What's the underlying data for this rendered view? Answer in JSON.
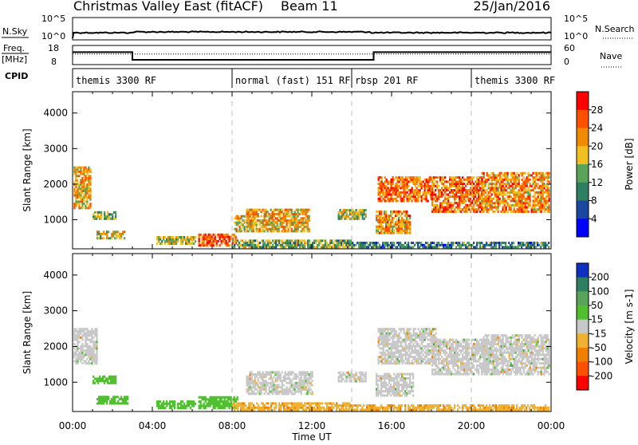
{
  "header": {
    "title": "Christmas Valley East (fitACF)",
    "beam": "Beam 11",
    "date": "25/Jan/2016"
  },
  "summary": {
    "nsky_label": "N.Sky",
    "nsearch_label": "N.Search",
    "nsky_ticks": [
      "10^5",
      "10^0"
    ],
    "nsearch_ticks": [
      "10^5",
      "10^0"
    ],
    "freq_label_1": "Freq.",
    "freq_label_2": "[MHz]",
    "freq_ticks": [
      "18",
      "8"
    ],
    "nave_label": "Nave",
    "nave_ticks": [
      "60",
      "0"
    ],
    "cpid_label": "CPID",
    "freq_steps": [
      {
        "t_start": 0,
        "t_end": 3.0,
        "freq": 14.5
      },
      {
        "t_start": 3.0,
        "t_end": 15.1,
        "freq": 10.5
      },
      {
        "t_start": 15.1,
        "t_end": 24,
        "freq": 14.5
      }
    ],
    "nave_level": 33,
    "cpid_segments": [
      {
        "t_start": 0,
        "t_end": 8.0,
        "label": "themis 3300 RF"
      },
      {
        "t_start": 8.0,
        "t_end": 14.0,
        "label": "normal (fast) 151 RF"
      },
      {
        "t_start": 14.0,
        "t_end": 20.0,
        "label": "rbsp 201 RF"
      },
      {
        "t_start": 20.0,
        "t_end": 24,
        "label": "themis 3300 RF"
      }
    ]
  },
  "chart_data": [
    {
      "type": "heatmap",
      "name": "power",
      "xlabel": "Time UT",
      "ylabel": "Slant Range [km]",
      "xlim": [
        0,
        24
      ],
      "ylim": [
        180,
        4600
      ],
      "yticks": [
        "1000",
        "2000",
        "3000",
        "4000"
      ],
      "colorbar": {
        "label": "Power [dB]",
        "ticks": [
          "4",
          "8",
          "12",
          "16",
          "20",
          "24",
          "28"
        ],
        "range": [
          0,
          32
        ],
        "colors": [
          "#0000ff",
          "#1a48a0",
          "#2e7f62",
          "#5aa35a",
          "#f0c020",
          "#f08a00",
          "#ff5000",
          "#ff0000"
        ]
      },
      "regions": [
        {
          "t": [
            0.05,
            0.9
          ],
          "r": [
            1300,
            2500
          ],
          "v": 20
        },
        {
          "t": [
            1.0,
            2.2
          ],
          "r": [
            1000,
            1200
          ],
          "v": 14
        },
        {
          "t": [
            1.2,
            2.6
          ],
          "r": [
            450,
            650
          ],
          "v": 18
        },
        {
          "t": [
            4.2,
            6.2
          ],
          "r": [
            300,
            500
          ],
          "v": 17
        },
        {
          "t": [
            6.3,
            8.2
          ],
          "r": [
            250,
            600
          ],
          "v": 26
        },
        {
          "t": [
            8.1,
            8.6
          ],
          "r": [
            650,
            1100
          ],
          "v": 18
        },
        {
          "t": [
            8.7,
            11.9
          ],
          "r": [
            650,
            1300
          ],
          "v": 20
        },
        {
          "t": [
            8.0,
            14.0
          ],
          "r": [
            200,
            400
          ],
          "v": 14
        },
        {
          "t": [
            13.3,
            14.7
          ],
          "r": [
            1000,
            1300
          ],
          "v": 16
        },
        {
          "t": [
            15.2,
            16.9
          ],
          "r": [
            600,
            1250
          ],
          "v": 22
        },
        {
          "t": [
            15.3,
            18.0
          ],
          "r": [
            1500,
            2200
          ],
          "v": 24
        },
        {
          "t": [
            18.0,
            20.5
          ],
          "r": [
            1200,
            2200
          ],
          "v": 24
        },
        {
          "t": [
            20.5,
            23.9
          ],
          "r": [
            1200,
            2300
          ],
          "v": 22
        },
        {
          "t": [
            14.0,
            23.9
          ],
          "r": [
            200,
            350
          ],
          "v": 10
        }
      ]
    },
    {
      "type": "heatmap",
      "name": "velocity",
      "xlabel": "Time UT",
      "ylabel": "Slant Range [km]",
      "xlim": [
        0,
        24
      ],
      "ylim": [
        180,
        4600
      ],
      "yticks": [
        "1000",
        "2000",
        "3000",
        "4000"
      ],
      "xticks": [
        "00:00",
        "04:00",
        "08:00",
        "12:00",
        "16:00",
        "20:00",
        "00:00"
      ],
      "colorbar": {
        "label": "Velocity [m s-1]",
        "ticks": [
          "200",
          "100",
          "50",
          "15",
          "-15",
          "-50",
          "-100",
          "-200"
        ],
        "colors": [
          "#1030c0",
          "#2e7f62",
          "#5aa35a",
          "#50c030",
          "#c8c8c8",
          "#f0b030",
          "#f08000",
          "#ff5000",
          "#ff0000"
        ]
      },
      "regions": [
        {
          "t": [
            0.05,
            1.2
          ],
          "r": [
            1500,
            2500
          ],
          "v": 0
        },
        {
          "t": [
            1.0,
            2.2
          ],
          "r": [
            950,
            1150
          ],
          "v": 30
        },
        {
          "t": [
            1.2,
            2.8
          ],
          "r": [
            380,
            600
          ],
          "v": 30
        },
        {
          "t": [
            4.2,
            6.2
          ],
          "r": [
            250,
            450
          ],
          "v": 30
        },
        {
          "t": [
            6.3,
            8.3
          ],
          "r": [
            250,
            600
          ],
          "v": 30
        },
        {
          "t": [
            8.7,
            12.0
          ],
          "r": [
            650,
            1300
          ],
          "v": 0
        },
        {
          "t": [
            8.0,
            14.0
          ],
          "r": [
            200,
            400
          ],
          "v": -40
        },
        {
          "t": [
            13.3,
            14.7
          ],
          "r": [
            1000,
            1300
          ],
          "v": 0
        },
        {
          "t": [
            15.2,
            17.1
          ],
          "r": [
            600,
            1250
          ],
          "v": 0
        },
        {
          "t": [
            15.3,
            18.2
          ],
          "r": [
            1500,
            2500
          ],
          "v": 0
        },
        {
          "t": [
            18.0,
            20.8
          ],
          "r": [
            1200,
            2200
          ],
          "v": 0
        },
        {
          "t": [
            20.5,
            23.9
          ],
          "r": [
            1200,
            2300
          ],
          "v": 0
        },
        {
          "t": [
            14.0,
            23.9
          ],
          "r": [
            200,
            350
          ],
          "v": -40
        }
      ]
    }
  ]
}
